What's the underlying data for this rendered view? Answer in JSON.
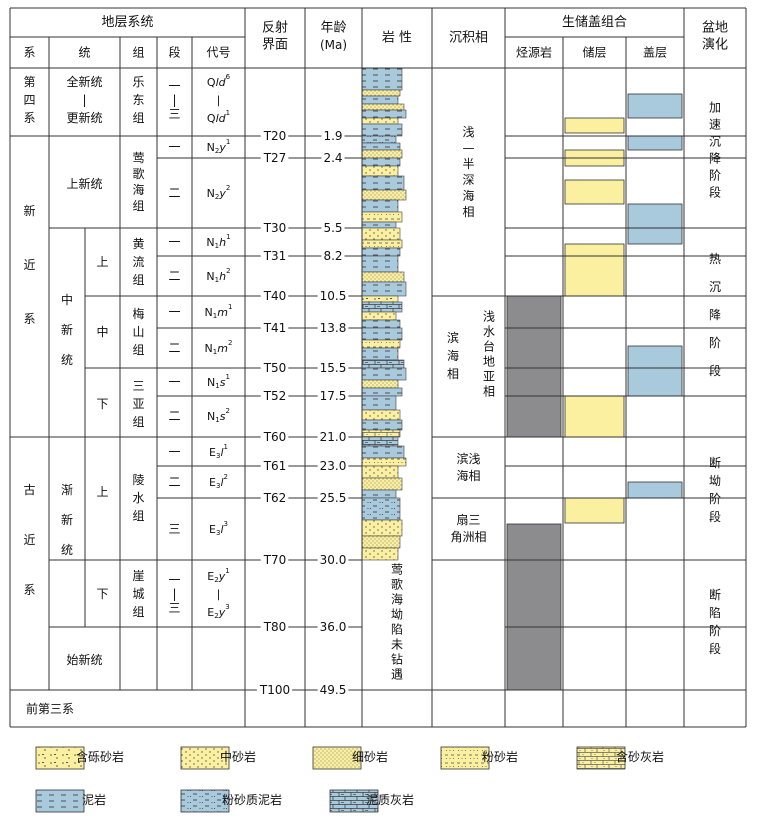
{
  "header": {
    "strat_system": "地层系统",
    "col_system": "系",
    "col_series": "统",
    "col_group": "组",
    "col_member": "段",
    "col_code": "代号",
    "reflect_line1": "反射",
    "reflect_line2": "界面",
    "age_line1": "年龄",
    "age_line2": "(Ma)",
    "lithology": "岩 性",
    "facies": "沉积相",
    "combo": "生储盖组合",
    "source": "烃源岩",
    "reservoir": "储层",
    "seal": "盖层",
    "evo_line1": "盆地",
    "evo_line2": "演化"
  },
  "systems": [
    {
      "chars": [
        "第",
        "四",
        "系"
      ]
    },
    {
      "chars": [
        "新",
        "近",
        "系"
      ]
    },
    {
      "chars": [
        "古",
        "近",
        "系"
      ]
    },
    {
      "chars": [
        "前第三系"
      ]
    }
  ],
  "series": [
    {
      "chars": [
        "全新统",
        "|",
        "更新统"
      ]
    },
    {
      "chars": [
        "上新统"
      ]
    },
    {
      "chars": [
        "中",
        "新",
        "统"
      ]
    },
    {
      "chars": [
        "渐",
        "新",
        "统"
      ]
    },
    {
      "chars": [
        "始新统"
      ]
    }
  ],
  "subseries": [
    {
      "label": "上"
    },
    {
      "label": "中"
    },
    {
      "label": "下"
    },
    {
      "label": "上"
    },
    {
      "label": "下"
    }
  ],
  "groups": [
    {
      "chars": [
        "乐",
        "东",
        "组"
      ]
    },
    {
      "chars": [
        "莺",
        "歌",
        "海",
        "组"
      ]
    },
    {
      "chars": [
        "黄",
        "流",
        "组"
      ]
    },
    {
      "chars": [
        "梅",
        "山",
        "组"
      ]
    },
    {
      "chars": [
        "三",
        "亚",
        "组"
      ]
    },
    {
      "chars": [
        "陵",
        "水",
        "组"
      ]
    },
    {
      "chars": [
        "崖",
        "城",
        "组"
      ]
    }
  ],
  "members": [
    {
      "chars": [
        "一",
        "|",
        "三"
      ]
    },
    {
      "chars": [
        "一"
      ]
    },
    {
      "chars": [
        "二"
      ]
    },
    {
      "chars": [
        "一"
      ]
    },
    {
      "chars": [
        "二"
      ]
    },
    {
      "chars": [
        "一"
      ]
    },
    {
      "chars": [
        "二"
      ]
    },
    {
      "chars": [
        "一"
      ]
    },
    {
      "chars": [
        "二"
      ]
    },
    {
      "chars": [
        "一"
      ]
    },
    {
      "chars": [
        "二"
      ]
    },
    {
      "chars": [
        "三"
      ]
    },
    {
      "chars": [
        "一",
        "|",
        "三"
      ]
    }
  ],
  "codes": [
    {
      "lines": [
        [
          "Q",
          "ld",
          "6"
        ],
        [
          "|",
          "",
          ""
        ],
        [
          "Q",
          "ld",
          "1"
        ]
      ]
    },
    {
      "lines": [
        [
          "N",
          "2",
          "y",
          "1"
        ]
      ]
    },
    {
      "lines": [
        [
          "N",
          "2",
          "y",
          "2"
        ]
      ]
    },
    {
      "lines": [
        [
          "N",
          "1",
          "h",
          "1"
        ]
      ]
    },
    {
      "lines": [
        [
          "N",
          "1",
          "h",
          "2"
        ]
      ]
    },
    {
      "lines": [
        [
          "N",
          "1",
          "m",
          "1"
        ]
      ]
    },
    {
      "lines": [
        [
          "N",
          "1",
          "m",
          "2"
        ]
      ]
    },
    {
      "lines": [
        [
          "N",
          "1",
          "s",
          "1"
        ]
      ]
    },
    {
      "lines": [
        [
          "N",
          "1",
          "s",
          "2"
        ]
      ]
    },
    {
      "lines": [
        [
          "E",
          "3",
          "l",
          "1"
        ]
      ]
    },
    {
      "lines": [
        [
          "E",
          "3",
          "l",
          "2"
        ]
      ]
    },
    {
      "lines": [
        [
          "E",
          "3",
          "l",
          "3"
        ]
      ]
    },
    {
      "lines": [
        [
          "E",
          "2",
          "y",
          "1"
        ],
        [
          "|"
        ],
        [
          "E",
          "2",
          "y",
          "3"
        ]
      ]
    }
  ],
  "boundaries": [
    {
      "name": "T20",
      "age": "1.9"
    },
    {
      "name": "T27",
      "age": "2.4"
    },
    {
      "name": "T30",
      "age": "5.5"
    },
    {
      "name": "T31",
      "age": "8.2"
    },
    {
      "name": "T40",
      "age": "10.5"
    },
    {
      "name": "T41",
      "age": "13.8"
    },
    {
      "name": "T50",
      "age": "15.5"
    },
    {
      "name": "T52",
      "age": "17.5"
    },
    {
      "name": "T60",
      "age": "21.0"
    },
    {
      "name": "T61",
      "age": "23.0"
    },
    {
      "name": "T62",
      "age": "25.5"
    },
    {
      "name": "T70",
      "age": "30.0"
    },
    {
      "name": "T80",
      "age": "36.0"
    },
    {
      "name": "T100",
      "age": "49.5"
    }
  ],
  "lith_note": {
    "chars": [
      "莺",
      "歌",
      "海",
      "坳",
      "陷",
      "未",
      "钻",
      "遇"
    ]
  },
  "facies": [
    {
      "chars": [
        "浅",
        "—",
        "半",
        "深",
        "海",
        "相"
      ]
    },
    {
      "chars": [
        "浅水台地亚相"
      ]
    },
    {
      "chars": [
        "滨",
        "海",
        "相"
      ]
    },
    {
      "chars": [
        "滨浅",
        "海相"
      ]
    },
    {
      "chars": [
        "扇三",
        "角洲相"
      ]
    }
  ],
  "evolution": [
    {
      "chars": [
        "加",
        "速",
        "沉",
        "降",
        "阶",
        "段"
      ]
    },
    {
      "chars": [
        "热",
        "沉",
        "降",
        "阶",
        "段"
      ]
    },
    {
      "chars": [
        "断",
        "坳",
        "阶",
        "段"
      ]
    },
    {
      "chars": [
        "断",
        "陷",
        "阶",
        "段"
      ]
    }
  ],
  "legend": [
    {
      "label": "含砾砂岩",
      "pattern": "pebbly-sandstone"
    },
    {
      "label": "中砂岩",
      "pattern": "medium-sandstone"
    },
    {
      "label": "细砂岩",
      "pattern": "fine-sandstone"
    },
    {
      "label": "粉砂岩",
      "pattern": "siltstone"
    },
    {
      "label": "含砂灰岩",
      "pattern": "sandy-limestone"
    },
    {
      "label": "泥岩",
      "pattern": "mudstone"
    },
    {
      "label": "粉砂质泥岩",
      "pattern": "silty-mudstone"
    },
    {
      "label": "泥质灰岩",
      "pattern": "argillaceous-limestone"
    }
  ],
  "colors": {
    "sand": "#fbf0a0",
    "mud": "#a9c9dc",
    "source_rock": "#8c8c8e",
    "line": "#333333"
  }
}
